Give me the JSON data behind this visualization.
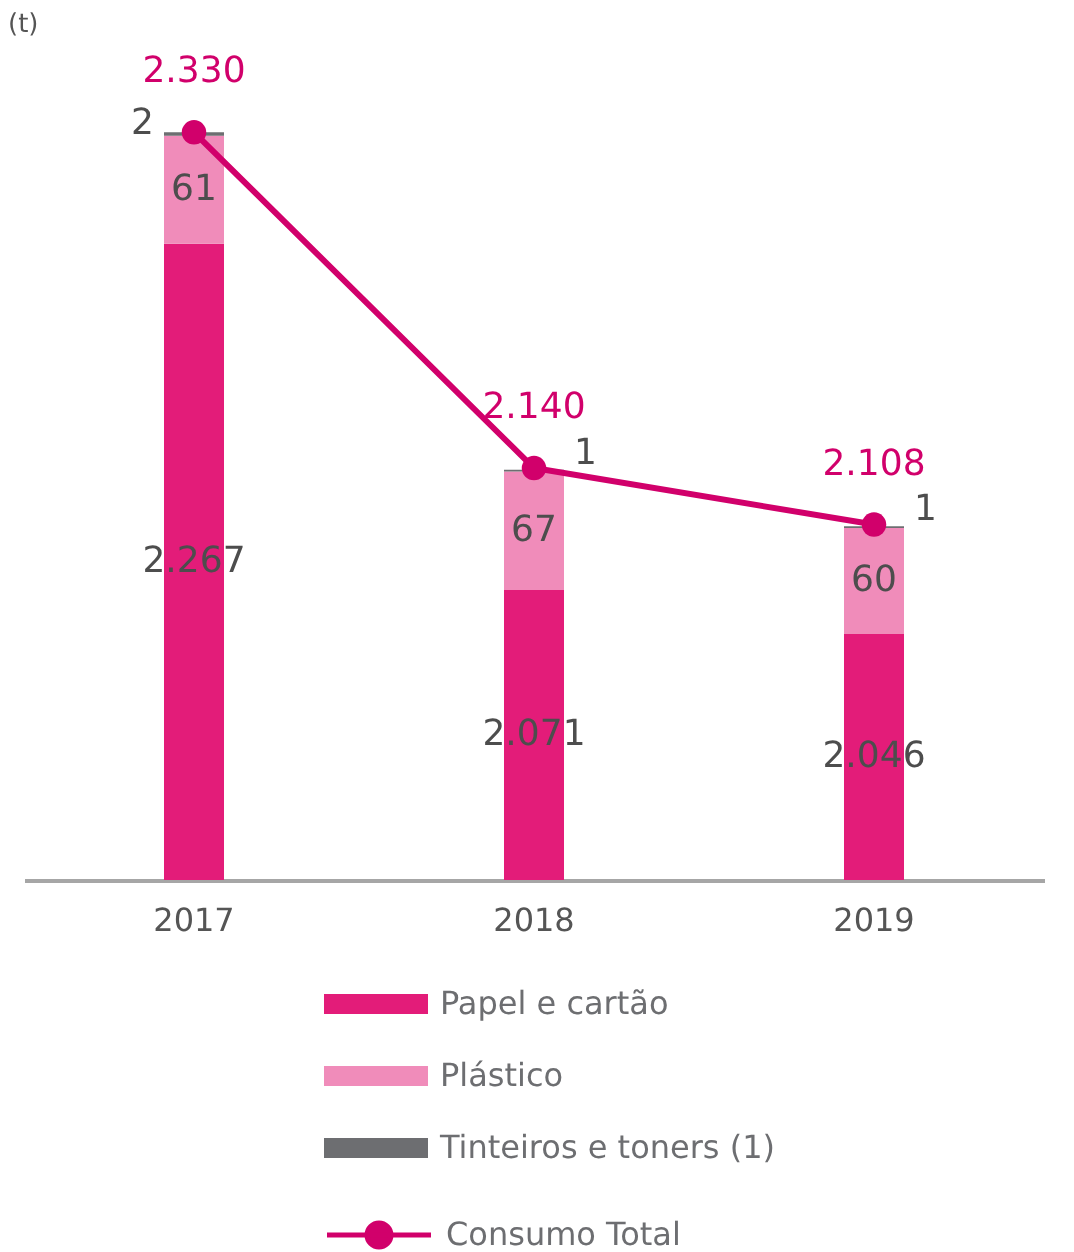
{
  "chart_data": {
    "type": "bar",
    "ylabel": "(t)",
    "stacked": true,
    "legend": "bottom",
    "tick_labels": "x",
    "marker": "circle",
    "categories": [
      "2017",
      "2018",
      "2019"
    ],
    "series": [
      {
        "name": "Papel e cartão",
        "type": "bar",
        "color": "#e31c79",
        "values": [
          2267,
          2071,
          2046
        ],
        "value_labels": [
          "2.267",
          "2.071",
          "2.046"
        ]
      },
      {
        "name": "Plástico",
        "type": "bar",
        "color": "#f08cba",
        "values": [
          61,
          67,
          60
        ],
        "value_labels": [
          "61",
          "67",
          "60"
        ]
      },
      {
        "name": "Tinteiros e toners (1)",
        "type": "bar",
        "color": "#6d6e71",
        "values": [
          2,
          1,
          1
        ],
        "value_labels": [
          "2",
          "1",
          "1"
        ]
      },
      {
        "name": "Consumo Total",
        "type": "line",
        "color": "#d1006b",
        "values": [
          2330,
          2140,
          2108
        ],
        "value_labels": [
          "2.330",
          "2.140",
          "2.108"
        ]
      }
    ]
  }
}
